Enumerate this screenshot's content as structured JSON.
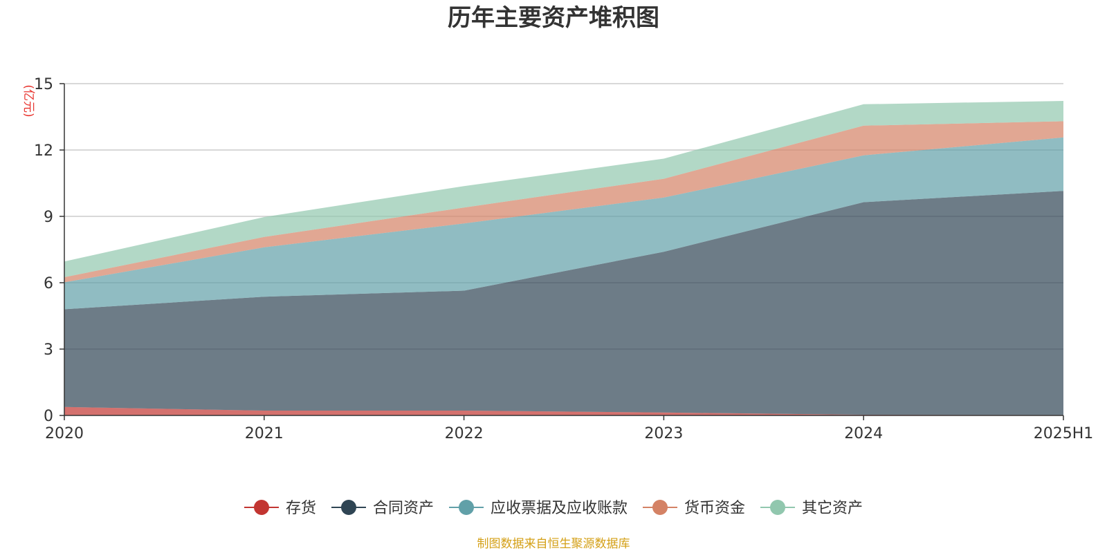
{
  "chart_data": {
    "type": "area",
    "stacked": true,
    "title": "历年主要资产堆积图",
    "unit_label": "(亿元)",
    "categories": [
      "2020",
      "2021",
      "2022",
      "2023",
      "2024",
      "2025H1"
    ],
    "ylim": [
      0,
      15
    ],
    "yticks": [
      "0",
      "3",
      "6",
      "9",
      "12",
      "15"
    ],
    "grid": true,
    "legend_position": "bottom",
    "series": [
      {
        "name": "存货",
        "color": "#c23531",
        "values": [
          0.38,
          0.22,
          0.22,
          0.13,
          0.03,
          0.02
        ]
      },
      {
        "name": "合同资产",
        "color": "#2f4554",
        "values": [
          4.42,
          5.15,
          5.42,
          7.27,
          9.61,
          10.13
        ]
      },
      {
        "name": "应收票据及应收账款",
        "color": "#61a0a8",
        "values": [
          1.22,
          2.23,
          3.04,
          2.45,
          2.12,
          2.42
        ]
      },
      {
        "name": "货币资金",
        "color": "#d48265",
        "values": [
          0.23,
          0.47,
          0.72,
          0.85,
          1.34,
          0.73
        ]
      },
      {
        "name": "其它资产",
        "color": "#91c7ae",
        "values": [
          0.71,
          0.9,
          0.97,
          0.91,
          0.97,
          0.92
        ]
      }
    ],
    "source": "制图数据来自恒生聚源数据库"
  }
}
